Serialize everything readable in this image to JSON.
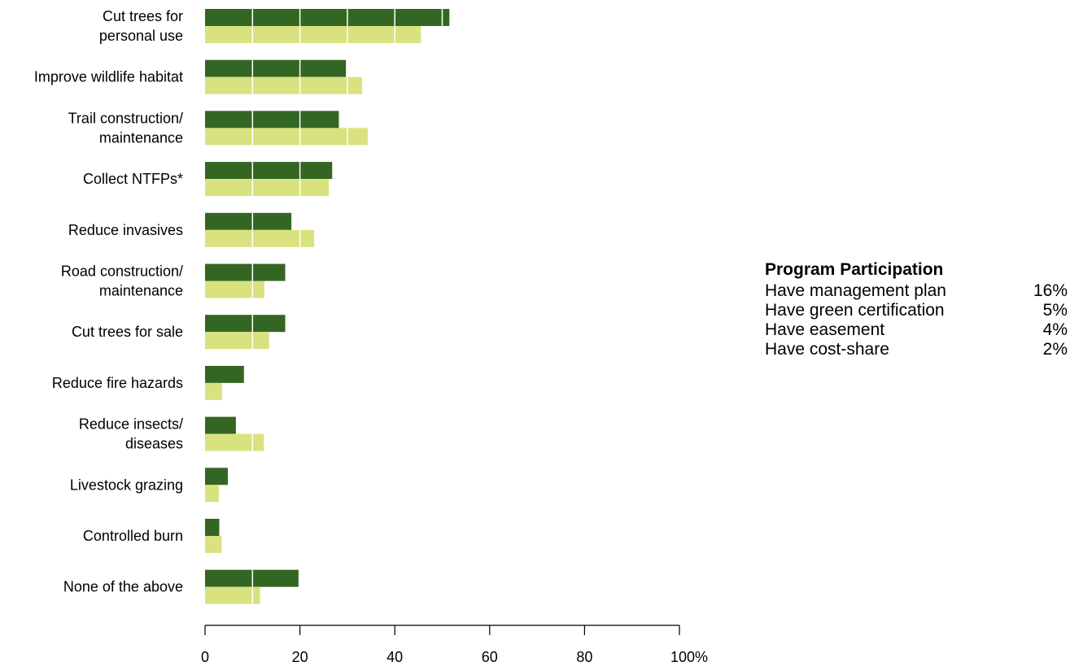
{
  "chart_data": {
    "type": "bar",
    "orientation": "horizontal",
    "categories": [
      [
        "Cut trees for",
        "personal use"
      ],
      [
        "Improve wildlife habitat"
      ],
      [
        "Trail construction/",
        "maintenance"
      ],
      [
        "Collect NTFPs*"
      ],
      [
        "Reduce invasives"
      ],
      [
        "Road construction/",
        "maintenance"
      ],
      [
        "Cut trees for sale"
      ],
      [
        "Reduce fire hazards"
      ],
      [
        "Reduce insects/",
        "diseases"
      ],
      [
        "Livestock grazing"
      ],
      [
        "Controlled burn"
      ],
      [
        "None of the above"
      ]
    ],
    "series": [
      {
        "color": "#336622",
        "values": [
          51.5,
          29.7,
          28.2,
          26.8,
          18.2,
          16.9,
          16.9,
          8.2,
          6.5,
          4.8,
          3.0,
          19.7
        ]
      },
      {
        "color": "#d9e27f",
        "values": [
          45.5,
          33.1,
          34.3,
          26.1,
          23.0,
          12.5,
          13.5,
          3.6,
          12.4,
          2.9,
          3.5,
          11.6
        ]
      }
    ],
    "xlim": [
      0,
      100
    ],
    "xticks": [
      "0",
      "20",
      "40",
      "60",
      "80",
      "100%"
    ],
    "gridlines": "white vertical lines every 10% over bars"
  },
  "program_participation": {
    "title": "Program Participation",
    "rows": [
      {
        "label": "Have management plan",
        "value": "16%"
      },
      {
        "label": "Have green certification",
        "value": "5%"
      },
      {
        "label": "Have easement",
        "value": "4%"
      },
      {
        "label": "Have cost-share",
        "value": "2%"
      }
    ]
  }
}
